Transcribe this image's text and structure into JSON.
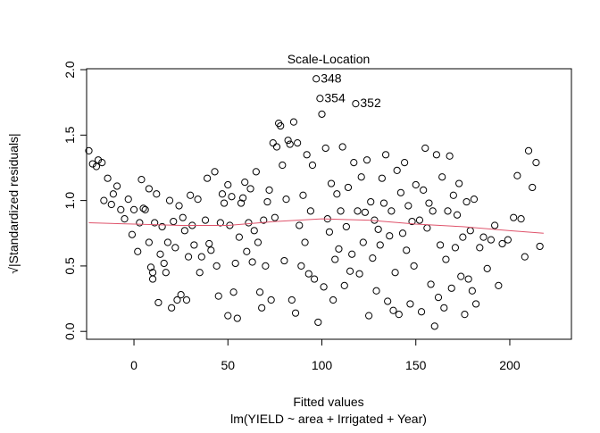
{
  "chart_data": {
    "type": "scatter",
    "title": "Scale-Location",
    "xlabel": "Fitted values",
    "subtitle": "lm(YIELD ~ area + Irrigated + Year)",
    "ylabel": "√|Standardized residuals|",
    "xlim": [
      -25.2,
      232.8
    ],
    "ylim": [
      -0.06,
      2.007
    ],
    "xticks": [
      0,
      50,
      100,
      150,
      200
    ],
    "yticks": [
      {
        "value": 0,
        "label": "0.0"
      },
      0.5,
      {
        "value": 1,
        "label": "1.0"
      },
      1.5,
      {
        "value": 2,
        "label": "2.0"
      }
    ],
    "series": [
      {
        "name": "residuals",
        "color": "#000000",
        "x": [
          -24,
          -22,
          -20,
          -19,
          -17,
          -16,
          -14,
          -12,
          -11,
          -9,
          -7,
          -5,
          -3,
          -1,
          0,
          2,
          3,
          4,
          5,
          6,
          8,
          8,
          9,
          10,
          10,
          11,
          12,
          13,
          14,
          15,
          16,
          17,
          18,
          19,
          20,
          21,
          22,
          23,
          24,
          25,
          26,
          27,
          28,
          29,
          30,
          31,
          32,
          34,
          35,
          36,
          38,
          39,
          40,
          41,
          43,
          44,
          45,
          46,
          47,
          48,
          50,
          50,
          51,
          52,
          53,
          54,
          55,
          56,
          57,
          58,
          59,
          60,
          61,
          62,
          63,
          64,
          65,
          66,
          67,
          68,
          69,
          70,
          71,
          72,
          73,
          74,
          75,
          76,
          77,
          78,
          79,
          80,
          81,
          82,
          83,
          84,
          85,
          86,
          87,
          88,
          89,
          90,
          91,
          92,
          93,
          94,
          95,
          96,
          97,
          98,
          99,
          100,
          101,
          102,
          103,
          104,
          105,
          106,
          107,
          108,
          109,
          110,
          111,
          112,
          113,
          114,
          115,
          116,
          117,
          118,
          119,
          120,
          121,
          122,
          123,
          124,
          125,
          126,
          127,
          128,
          129,
          130,
          131,
          132,
          133,
          134,
          135,
          136,
          137,
          138,
          139,
          140,
          141,
          142,
          143,
          144,
          145,
          146,
          147,
          148,
          149,
          150,
          152,
          153,
          154,
          155,
          156,
          157,
          158,
          159,
          160,
          161,
          162,
          163,
          164,
          165,
          166,
          167,
          168,
          169,
          170,
          171,
          172,
          173,
          174,
          175,
          176,
          177,
          178,
          179,
          180,
          181,
          182,
          184,
          186,
          188,
          190,
          192,
          194,
          196,
          199,
          202,
          204,
          206,
          208,
          210,
          212,
          214,
          216
        ],
        "values": [
          1.38,
          1.28,
          1.26,
          1.31,
          1.29,
          1.0,
          1.17,
          0.97,
          1.05,
          1.11,
          0.93,
          0.86,
          1.01,
          0.74,
          0.93,
          0.61,
          0.83,
          1.16,
          0.94,
          0.93,
          1.09,
          0.68,
          0.49,
          0.4,
          0.45,
          0.83,
          1.05,
          0.22,
          0.59,
          0.8,
          0.52,
          0.45,
          0.68,
          1.0,
          0.18,
          0.84,
          0.64,
          0.24,
          0.96,
          0.28,
          0.87,
          0.77,
          0.24,
          0.57,
          1.04,
          0.81,
          0.66,
          1.01,
          0.45,
          0.57,
          0.85,
          1.17,
          0.67,
          0.62,
          1.22,
          0.5,
          0.27,
          0.83,
          1.05,
          0.98,
          0.12,
          1.12,
          0.81,
          1.03,
          0.3,
          0.52,
          0.1,
          0.72,
          0.98,
          1.02,
          1.14,
          0.61,
          0.83,
          1.09,
          0.53,
          0.77,
          1.22,
          0.68,
          0.3,
          0.18,
          0.85,
          0.5,
          0.99,
          1.08,
          0.24,
          1.44,
          0.87,
          1.41,
          1.59,
          1.57,
          1.27,
          0.54,
          1.01,
          1.46,
          1.43,
          0.24,
          1.6,
          0.14,
          1.44,
          0.81,
          0.5,
          1.04,
          0.68,
          1.35,
          0.44,
          0.92,
          1.27,
          0.4,
          1.93,
          0.07,
          1.78,
          1.66,
          0.34,
          1.4,
          0.86,
          0.76,
          1.13,
          0.24,
          0.55,
          1.05,
          0.63,
          0.92,
          1.41,
          0.35,
          0.8,
          1.1,
          0.46,
          0.59,
          1.29,
          1.74,
          0.92,
          0.44,
          1.18,
          0.68,
          0.91,
          1.31,
          0.12,
          0.99,
          0.56,
          0.85,
          0.31,
          0.78,
          0.66,
          1.17,
          0.98,
          1.35,
          0.23,
          0.73,
          0.92,
          0.16,
          0.45,
          1.23,
          0.13,
          1.06,
          0.75,
          1.29,
          0.62,
          0.96,
          0.21,
          0.84,
          0.5,
          1.12,
          0.85,
          0.15,
          1.08,
          1.4,
          0.79,
          0.98,
          0.36,
          0.92,
          0.04,
          1.35,
          0.26,
          0.66,
          1.18,
          0.18,
          0.55,
          0.92,
          1.34,
          0.33,
          1.04,
          0.64,
          0.89,
          1.13,
          0.42,
          0.72,
          0.13,
          0.99,
          0.4,
          0.77,
          0.31,
          1.01,
          0.21,
          0.64,
          0.72,
          0.48,
          0.7,
          0.81,
          0.35,
          0.67,
          0.7,
          0.87,
          1.19,
          0.86,
          0.57,
          1.38,
          1.1,
          1.29,
          0.65
        ]
      },
      {
        "name": "smooth",
        "color": "#DF536B",
        "x": [
          -24,
          0,
          25,
          50,
          75,
          100,
          125,
          150,
          175,
          200,
          218
        ],
        "values": [
          0.83,
          0.82,
          0.81,
          0.81,
          0.84,
          0.86,
          0.85,
          0.82,
          0.8,
          0.77,
          0.75
        ]
      }
    ],
    "annotations": [
      {
        "text": "348",
        "x": 97,
        "y": 1.93
      },
      {
        "text": "354",
        "x": 99,
        "y": 1.78
      },
      {
        "text": "352",
        "x": 118,
        "y": 1.74
      }
    ]
  }
}
